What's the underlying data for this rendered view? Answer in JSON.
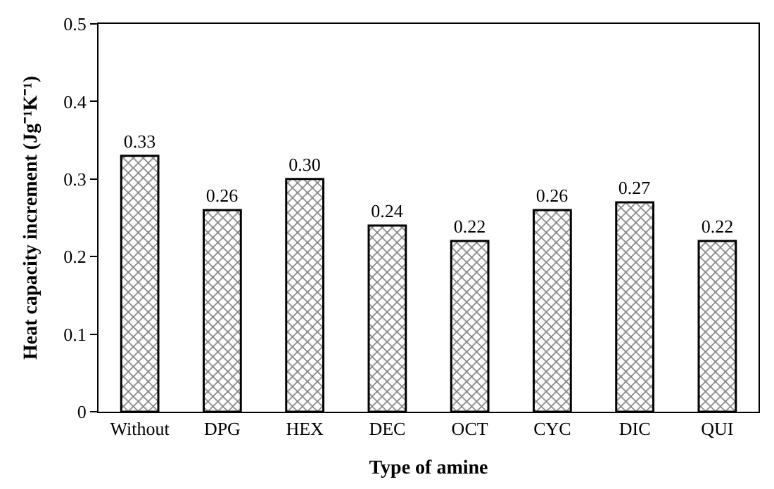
{
  "chart_data": {
    "type": "bar",
    "xlabel": "Type of amine",
    "ylabel": "Heat capacity increment (Jg⁻¹K⁻¹)",
    "categories": [
      "Without",
      "DPG",
      "HEX",
      "DEC",
      "OCT",
      "CYC",
      "DIC",
      "QUI"
    ],
    "values": [
      0.33,
      0.26,
      0.3,
      0.24,
      0.22,
      0.26,
      0.27,
      0.22
    ],
    "value_labels": [
      "0.33",
      "0.26",
      "0.30",
      "0.24",
      "0.22",
      "0.26",
      "0.27",
      "0.22"
    ],
    "color": "#000000",
    "ylim": [
      0,
      0.5
    ],
    "yticks": [
      0,
      0.1,
      0.2,
      0.3,
      0.4,
      0.5
    ]
  }
}
